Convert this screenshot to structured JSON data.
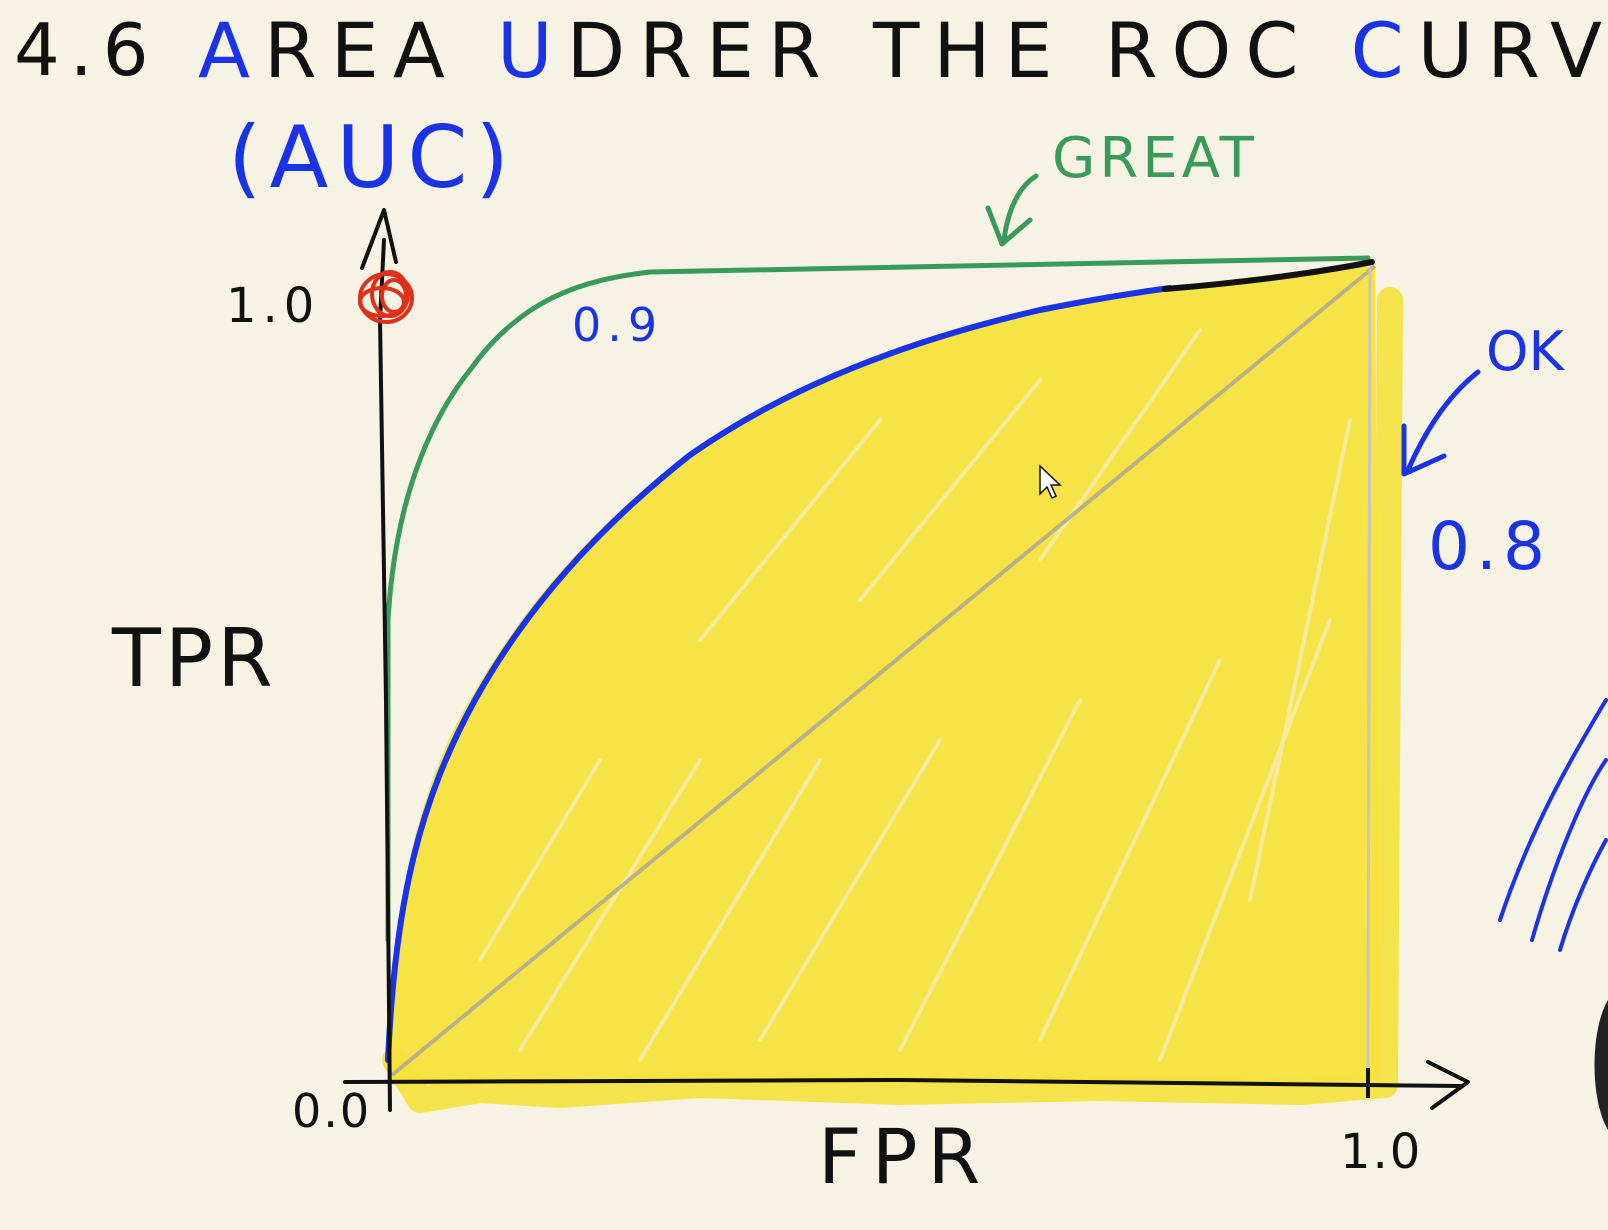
{
  "title": {
    "number": "4.6",
    "a": "A",
    "rea": "REA",
    "u": "U",
    "nder": "DRER",
    "the_roc": "THE ROC",
    "c": "C",
    "urve": "URVE"
  },
  "abbreviation": "(AUC)",
  "labels": {
    "great": "GREAT",
    "ok": "OK",
    "auc_great_value": "0.9",
    "auc_ok_value": "0.8"
  },
  "axes": {
    "y_label": "TPR",
    "x_label": "FPR",
    "y_tick_top": "1.0",
    "origin": "0.0",
    "x_tick_right": "1.0"
  },
  "colors": {
    "background": "#f6f3e4",
    "ink": "#111111",
    "blue": "#1a33e6",
    "green": "#3a9a5a",
    "yellow": "#f5e13a",
    "red": "#e0301a",
    "gray": "#b8b5ac"
  }
}
